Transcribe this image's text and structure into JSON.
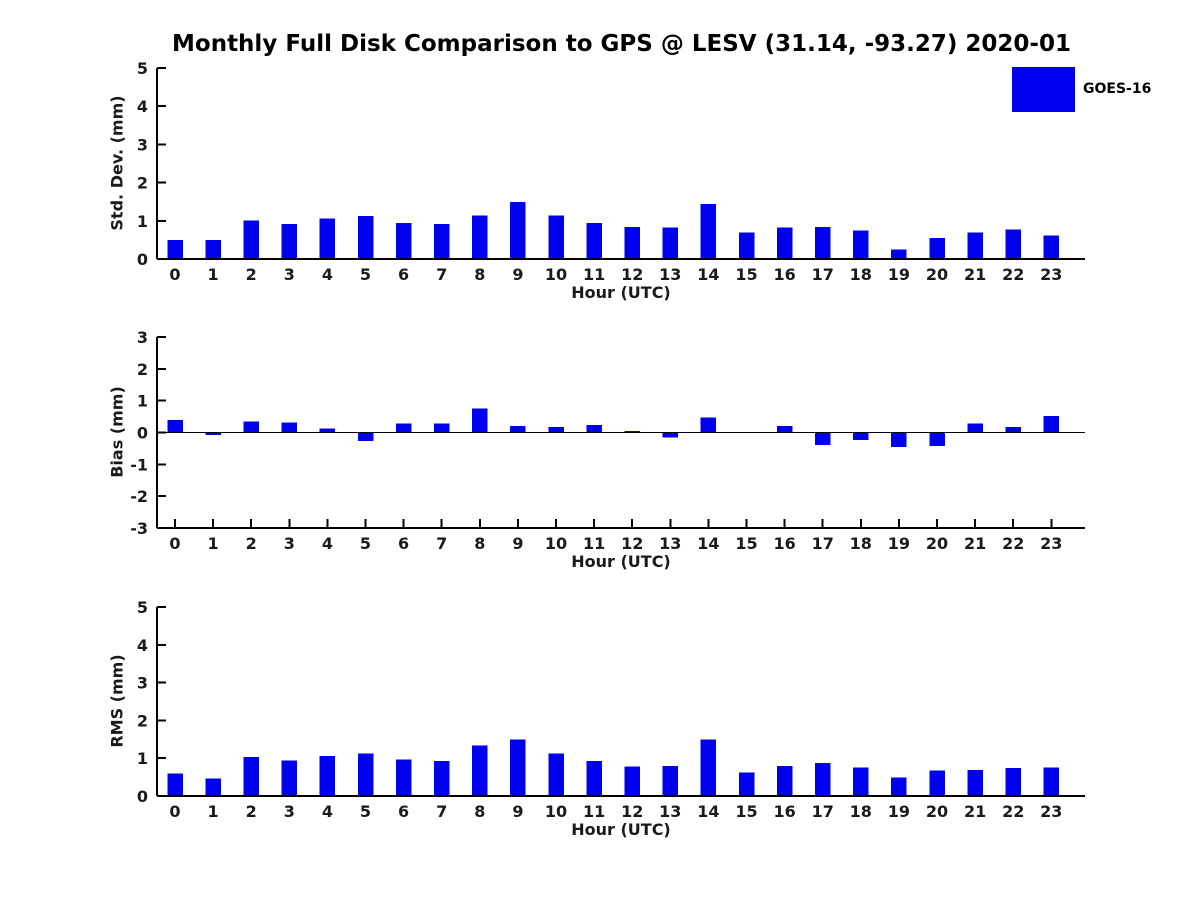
{
  "page": {
    "title": "Monthly Full Disk Comparison to GPS @ LESV (31.14, -93.27) 2020-01"
  },
  "legend": {
    "label": "GOES-16",
    "position": "upper right",
    "swatch_color": "#0000f0"
  },
  "colors": {
    "bar": "#0000f0",
    "axis": "#000000",
    "tick_text": "#1a1a1a",
    "background": "#ffffff"
  },
  "chart_data": [
    {
      "type": "bar",
      "ylabel": "Std. Dev. (mm)",
      "xlabel": "Hour (UTC)",
      "ylim": [
        0,
        5
      ],
      "yticks": [
        0,
        1,
        2,
        3,
        4,
        5
      ],
      "grid": false,
      "categories": [
        "0",
        "1",
        "2",
        "3",
        "4",
        "5",
        "6",
        "7",
        "8",
        "9",
        "10",
        "11",
        "12",
        "13",
        "14",
        "15",
        "16",
        "17",
        "18",
        "19",
        "20",
        "21",
        "22",
        "23"
      ],
      "series": [
        {
          "name": "GOES-16",
          "values": [
            0.5,
            0.5,
            1.01,
            0.92,
            1.06,
            1.12,
            0.94,
            0.91,
            1.14,
            1.49,
            1.14,
            0.94,
            0.84,
            0.83,
            1.44,
            0.7,
            0.83,
            0.84,
            0.75,
            0.25,
            0.55,
            0.7,
            0.77,
            0.62
          ]
        }
      ]
    },
    {
      "type": "bar",
      "ylabel": "Bias (mm)",
      "xlabel": "Hour (UTC)",
      "ylim": [
        -3,
        3
      ],
      "yticks": [
        -3,
        -2,
        -1,
        0,
        1,
        2,
        3
      ],
      "grid": false,
      "zero_line": true,
      "categories": [
        "0",
        "1",
        "2",
        "3",
        "4",
        "5",
        "6",
        "7",
        "8",
        "9",
        "10",
        "11",
        "12",
        "13",
        "14",
        "15",
        "16",
        "17",
        "18",
        "19",
        "20",
        "21",
        "22",
        "23"
      ],
      "series": [
        {
          "name": "GOES-16",
          "values": [
            0.39,
            -0.08,
            0.34,
            0.31,
            0.13,
            -0.26,
            0.28,
            0.28,
            0.76,
            0.21,
            0.17,
            0.23,
            0.05,
            -0.16,
            0.47,
            0.0,
            0.2,
            -0.4,
            -0.23,
            -0.45,
            -0.42,
            0.28,
            0.17,
            0.52
          ]
        }
      ]
    },
    {
      "type": "bar",
      "ylabel": "RMS (mm)",
      "xlabel": "Hour (UTC)",
      "ylim": [
        0,
        5
      ],
      "yticks": [
        0,
        1,
        2,
        3,
        4,
        5
      ],
      "grid": false,
      "categories": [
        "0",
        "1",
        "2",
        "3",
        "4",
        "5",
        "6",
        "7",
        "8",
        "9",
        "10",
        "11",
        "12",
        "13",
        "14",
        "15",
        "16",
        "17",
        "18",
        "19",
        "20",
        "21",
        "22",
        "23"
      ],
      "series": [
        {
          "name": "GOES-16",
          "values": [
            0.59,
            0.46,
            1.03,
            0.94,
            1.06,
            1.13,
            0.96,
            0.92,
            1.34,
            1.49,
            1.13,
            0.92,
            0.78,
            0.79,
            1.5,
            0.62,
            0.79,
            0.87,
            0.75,
            0.49,
            0.67,
            0.69,
            0.74,
            0.76
          ]
        }
      ]
    }
  ]
}
